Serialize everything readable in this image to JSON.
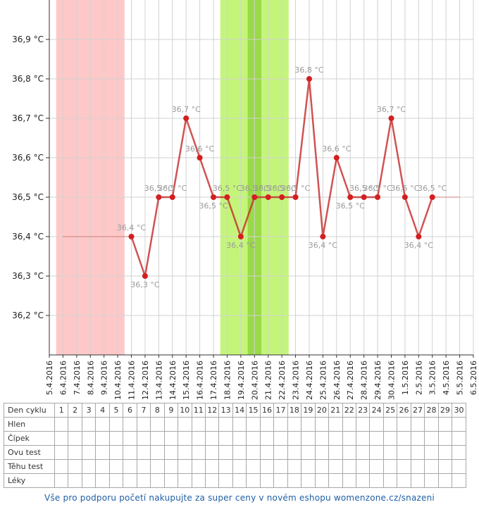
{
  "chart_data": {
    "type": "line",
    "y_ticks": [
      "36,2 °C",
      "36,3 °C",
      "36,4 °C",
      "36,5 °C",
      "36,6 °C",
      "36,7 °C",
      "36,8 °C",
      "36,9 °C"
    ],
    "ylim": [
      36.1,
      37.0
    ],
    "x_dates": [
      "5.4.2016",
      "6.4.2016",
      "7.4.2016",
      "8.4.2016",
      "9.4.2016",
      "10.4.2016",
      "11.4.2016",
      "12.4.2016",
      "13.4.2016",
      "14.4.2016",
      "15.4.2016",
      "16.4.2016",
      "17.4.2016",
      "18.4.2016",
      "19.4.2016",
      "20.4.2016",
      "21.4.2016",
      "22.4.2016",
      "23.4.2016",
      "24.4.2016",
      "25.4.2016",
      "26.4.2016",
      "27.4.2016",
      "28.4.2016",
      "29.4.2016",
      "30.4.2016",
      "1.5.2016",
      "2.5.2016",
      "3.5.2016",
      "4.5.2016",
      "5.5.2016",
      "6.5.2016"
    ],
    "grid": true,
    "series": [
      {
        "color": "#c62828",
        "points": [
          {
            "x": "11.4.2016",
            "y": 36.4,
            "label": "36,4 °C"
          },
          {
            "x": "12.4.2016",
            "y": 36.3,
            "label": "36,3 °C"
          },
          {
            "x": "13.4.2016",
            "y": 36.5,
            "label": "36,5 °C"
          },
          {
            "x": "14.4.2016",
            "y": 36.5,
            "label": "36,5 °C"
          },
          {
            "x": "15.4.2016",
            "y": 36.7,
            "label": "36,7 °C"
          },
          {
            "x": "16.4.2016",
            "y": 36.6,
            "label": "36,6 °C"
          },
          {
            "x": "17.4.2016",
            "y": 36.5,
            "label": "36,5 °C"
          },
          {
            "x": "18.4.2016",
            "y": 36.5,
            "label": "36,5 °C"
          },
          {
            "x": "19.4.2016",
            "y": 36.4,
            "label": "36,4 °C"
          },
          {
            "x": "20.4.2016",
            "y": 36.5,
            "label": "36,5 °C"
          },
          {
            "x": "21.4.2016",
            "y": 36.5,
            "label": "36,5 °C"
          },
          {
            "x": "22.4.2016",
            "y": 36.5,
            "label": "36,5 °C"
          },
          {
            "x": "23.4.2016",
            "y": 36.5,
            "label": "36,5 °C"
          },
          {
            "x": "24.4.2016",
            "y": 36.8,
            "label": "36,8 °C"
          },
          {
            "x": "25.4.2016",
            "y": 36.4,
            "label": "36,4 °C"
          },
          {
            "x": "26.4.2016",
            "y": 36.6,
            "label": "36,6 °C"
          },
          {
            "x": "27.4.2016",
            "y": 36.5,
            "label": "36,5 °C"
          },
          {
            "x": "28.4.2016",
            "y": 36.5,
            "label": "36,5 °C"
          },
          {
            "x": "29.4.2016",
            "y": 36.5,
            "label": "36,5 °C"
          },
          {
            "x": "30.4.2016",
            "y": 36.7,
            "label": "36,7 °C"
          },
          {
            "x": "1.5.2016",
            "y": 36.5,
            "label": "36,5 °C"
          },
          {
            "x": "2.5.2016",
            "y": 36.4,
            "label": "36,4 °C"
          },
          {
            "x": "3.5.2016",
            "y": 36.5,
            "label": "36,5 °C"
          }
        ]
      }
    ],
    "reference_lines": [
      {
        "from": "6.4.2016",
        "to": "11.4.2016",
        "y": 36.4,
        "color": "#c62828",
        "style": "dotted"
      },
      {
        "from": "3.5.2016",
        "to": "5.5.2016",
        "y": 36.5,
        "color": "#c62828",
        "style": "dotted"
      }
    ],
    "bands": [
      {
        "kind": "menstruation",
        "from": "6.4.2016",
        "to": "11.4.2016",
        "color": "#ffc8c8"
      },
      {
        "kind": "fertile",
        "from": "18.4.2016",
        "to": "23.4.2016",
        "color": "#c4f57a"
      },
      {
        "kind": "ovulation",
        "from": "20.4.2016",
        "to": "21.4.2016",
        "color": "#9ad948"
      }
    ]
  },
  "table": {
    "rows": [
      {
        "label": "Den cyklu",
        "values": [
          "1",
          "2",
          "3",
          "4",
          "5",
          "6",
          "7",
          "8",
          "9",
          "10",
          "11",
          "12",
          "13",
          "14",
          "15",
          "16",
          "17",
          "18",
          "19",
          "20",
          "21",
          "22",
          "23",
          "24",
          "25",
          "26",
          "27",
          "28",
          "29",
          "30"
        ]
      },
      {
        "label": "Hlen",
        "values": []
      },
      {
        "label": "Čípek",
        "values": []
      },
      {
        "label": "Ovu test",
        "values": []
      },
      {
        "label": "Těhu test",
        "values": []
      },
      {
        "label": "Léky",
        "values": []
      }
    ]
  },
  "footer": {
    "text": "Vše pro podporu početí nakupujte za super ceny v novém eshopu womenzone.cz/snazeni"
  }
}
